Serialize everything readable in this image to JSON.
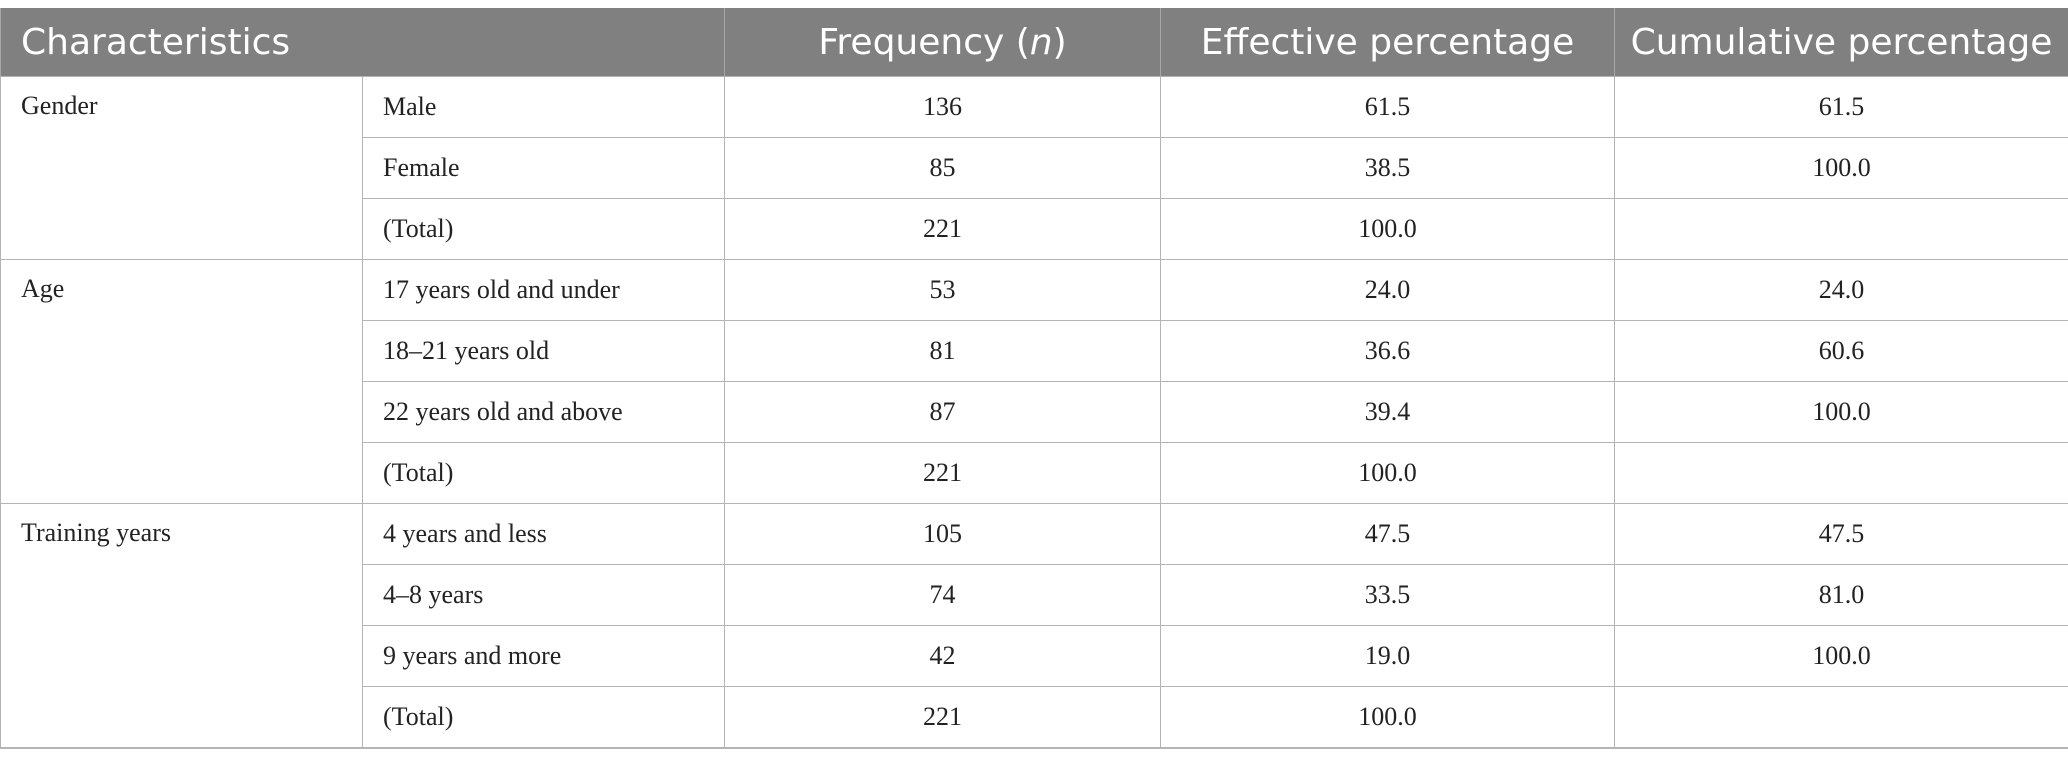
{
  "header": {
    "characteristics": "Characteristics",
    "frequency_prefix": "Frequency (",
    "frequency_var": "n",
    "frequency_suffix": ")",
    "effective": "Effective percentage",
    "cumulative": "Cumulative percentage"
  },
  "groups": [
    {
      "name": "Gender",
      "rows": [
        {
          "label": "Male",
          "frequency": "136",
          "effective": "61.5",
          "cumulative": "61.5"
        },
        {
          "label": "Female",
          "frequency": "85",
          "effective": "38.5",
          "cumulative": "100.0"
        },
        {
          "label": "(Total)",
          "frequency": "221",
          "effective": "100.0",
          "cumulative": ""
        }
      ]
    },
    {
      "name": "Age",
      "rows": [
        {
          "label": "17 years old and under",
          "frequency": "53",
          "effective": "24.0",
          "cumulative": "24.0"
        },
        {
          "label": "18–21 years old",
          "frequency": "81",
          "effective": "36.6",
          "cumulative": "60.6"
        },
        {
          "label": "22 years old and above",
          "frequency": "87",
          "effective": "39.4",
          "cumulative": "100.0"
        },
        {
          "label": "(Total)",
          "frequency": "221",
          "effective": "100.0",
          "cumulative": ""
        }
      ]
    },
    {
      "name": "Training years",
      "rows": [
        {
          "label": "4 years and less",
          "frequency": "105",
          "effective": "47.5",
          "cumulative": "47.5"
        },
        {
          "label": "4–8 years",
          "frequency": "74",
          "effective": "33.5",
          "cumulative": "81.0"
        },
        {
          "label": "9 years and more",
          "frequency": "42",
          "effective": "19.0",
          "cumulative": "100.0"
        },
        {
          "label": "(Total)",
          "frequency": "221",
          "effective": "100.0",
          "cumulative": ""
        }
      ]
    }
  ],
  "colors": {
    "header_bg": "#808080",
    "header_text": "#ffffff",
    "grid": "#b4b4b4",
    "body_text": "#222222"
  }
}
